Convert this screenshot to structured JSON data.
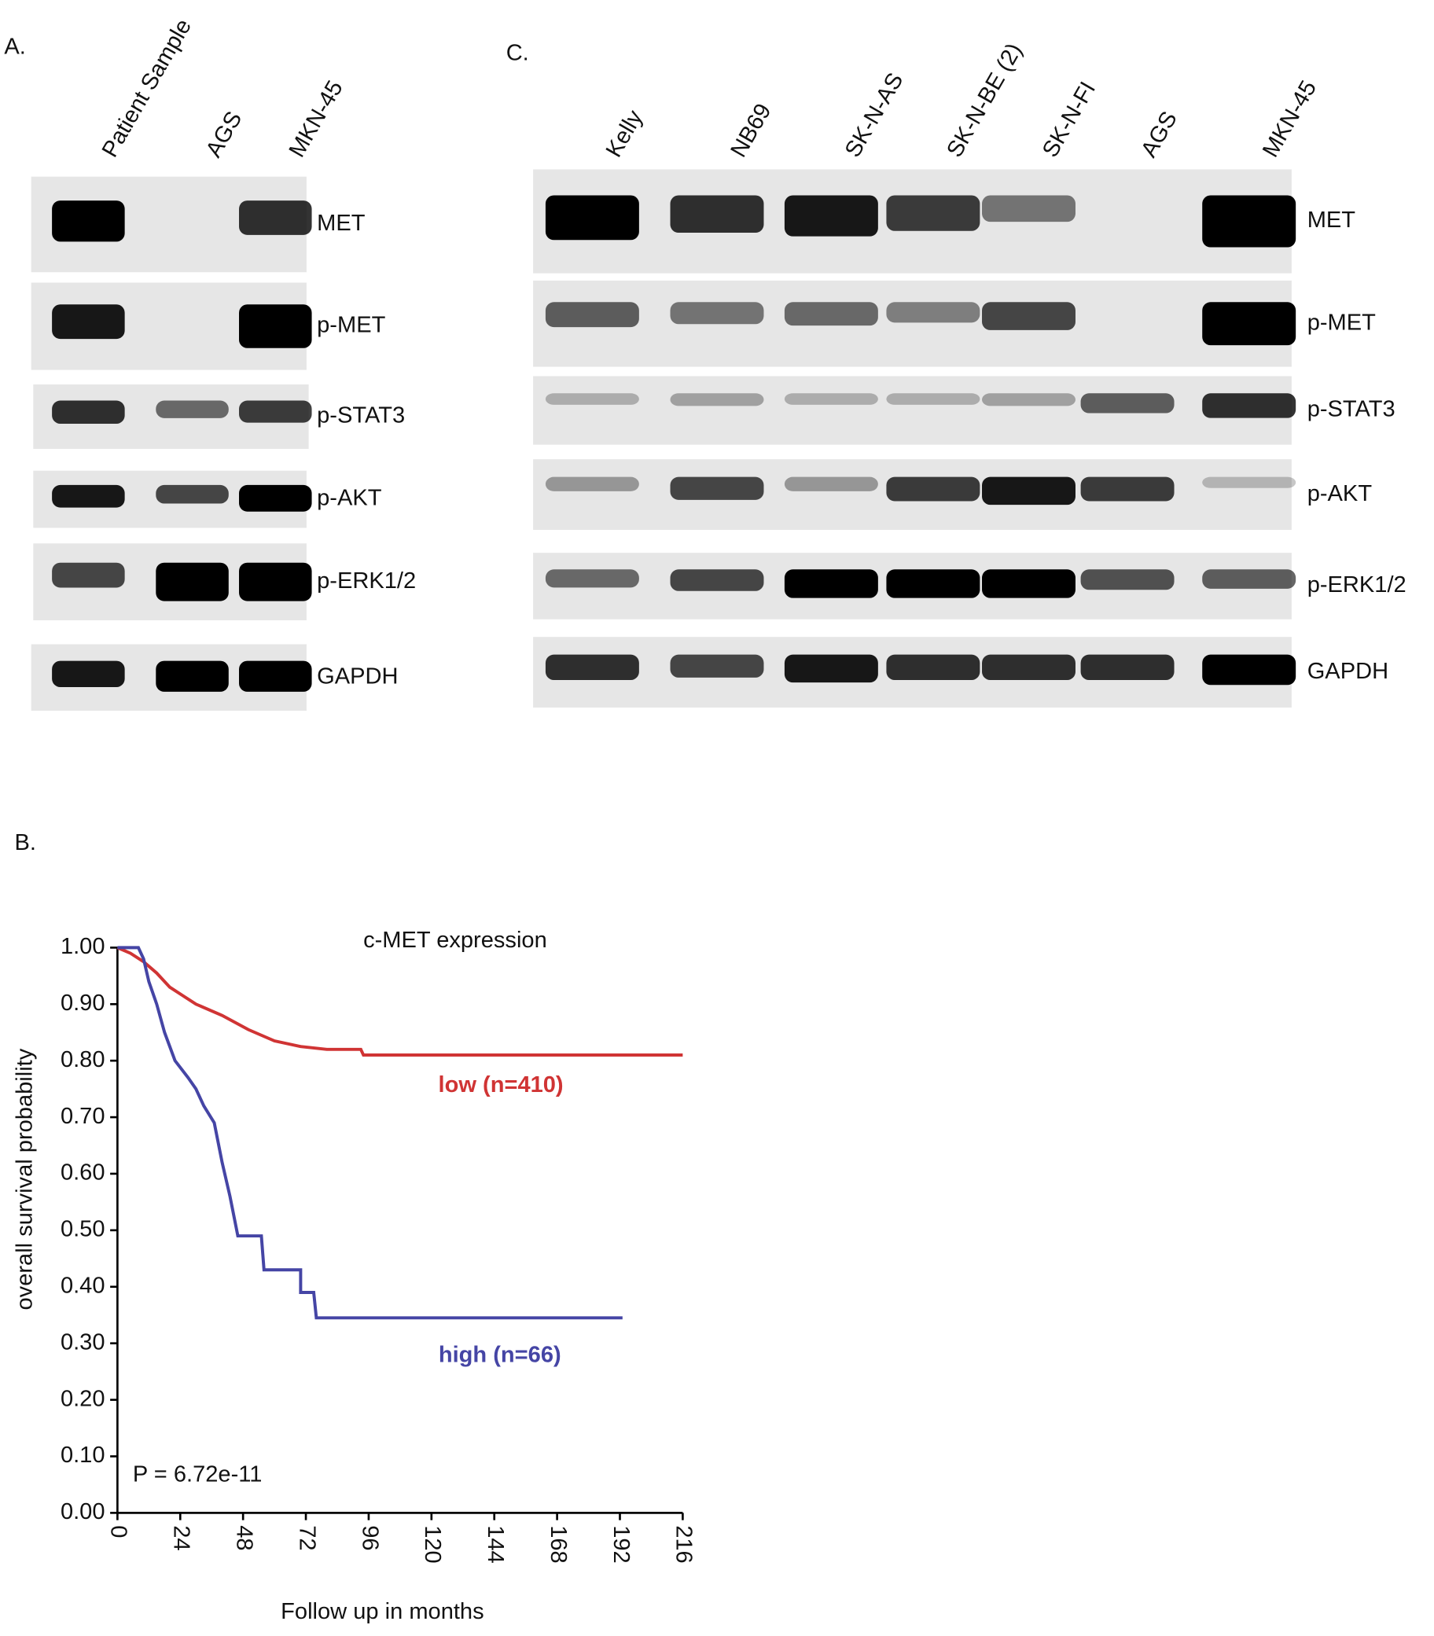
{
  "panel_a": {
    "label": "A.",
    "lanes": [
      "Patient Sample",
      "AGS",
      "MKN-45"
    ],
    "rows": [
      "MET",
      "p-MET",
      "p-STAT3",
      "p-AKT",
      "p-ERK1/2",
      "GAPDH"
    ]
  },
  "panel_c": {
    "label": "C.",
    "lanes": [
      "Kelly",
      "NB69",
      "SK-N-AS",
      "SK-N-BE (2)",
      "SK-N-FI",
      "AGS",
      "MKN-45"
    ],
    "rows": [
      "MET",
      "p-MET",
      "p-STAT3",
      "p-AKT",
      "p-ERK1/2",
      "GAPDH"
    ]
  },
  "panel_b": {
    "label": "B."
  },
  "chart_data": {
    "type": "line",
    "title": "c-MET expression",
    "x_label": "Follow up in months",
    "y_label": "overall survival probability",
    "annotation": "P = 6.72e-11",
    "xlim": [
      0,
      216
    ],
    "xticks": [
      0,
      24,
      48,
      72,
      96,
      120,
      144,
      168,
      192,
      216
    ],
    "ylim": [
      0,
      1
    ],
    "yticks": [
      {
        "value": 0,
        "label": "0.00"
      },
      {
        "value": 0.1,
        "label": "0.10"
      },
      {
        "value": 0.2,
        "label": "0.20"
      },
      {
        "value": 0.3,
        "label": "0.30"
      },
      {
        "value": 0.4,
        "label": "0.40"
      },
      {
        "value": 0.5,
        "label": "0.50"
      },
      {
        "value": 0.6,
        "label": "0.60"
      },
      {
        "value": 0.7,
        "label": "0.70"
      },
      {
        "value": 0.8,
        "label": "0.80"
      },
      {
        "value": 0.9,
        "label": "0.90"
      },
      {
        "value": 1,
        "label": "1.00"
      }
    ],
    "series": [
      {
        "name": "low (n=410)",
        "color": "#d03434",
        "x": [
          0,
          5,
          10,
          15,
          20,
          25,
          30,
          40,
          50,
          60,
          70,
          80,
          93,
          94,
          216
        ],
        "values": [
          1,
          0.99,
          0.975,
          0.955,
          0.93,
          0.915,
          0.9,
          0.88,
          0.855,
          0.835,
          0.825,
          0.82,
          0.82,
          0.81,
          0.81
        ]
      },
      {
        "name": "high (n=66)",
        "color": "#4545a5",
        "x": [
          0,
          8,
          10,
          12,
          15,
          18,
          22,
          27,
          30,
          33,
          37,
          40,
          43,
          46,
          55,
          56,
          70,
          70,
          75,
          76,
          193
        ],
        "values": [
          1,
          1,
          0.98,
          0.94,
          0.9,
          0.85,
          0.8,
          0.77,
          0.75,
          0.72,
          0.69,
          0.62,
          0.56,
          0.49,
          0.49,
          0.43,
          0.43,
          0.39,
          0.39,
          0.345,
          0.345
        ]
      }
    ]
  }
}
